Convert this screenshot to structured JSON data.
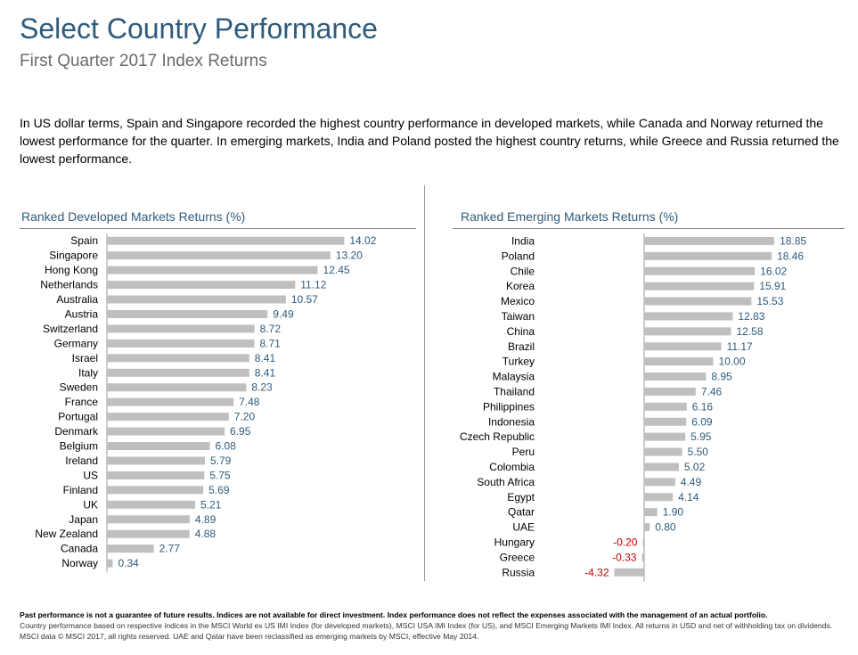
{
  "header": {
    "title": "Select Country Performance",
    "subtitle": "First Quarter 2017 Index Returns"
  },
  "intro": "In US dollar terms, Spain and Singapore recorded the highest country performance in developed markets, while Canada and Norway returned the lowest performance for the quarter. In emerging markets, India and Poland posted the highest country returns, while Greece and Russia returned the lowest performance.",
  "colors": {
    "bar": "#bfbfbf",
    "positive_label": "#2f5b7c",
    "negative_label": "#c00000",
    "title": "#2f5b7c",
    "axis": "#9a9a9a"
  },
  "chart_data": [
    {
      "type": "bar",
      "orientation": "horizontal",
      "title": "Ranked Developed Markets Returns (%)",
      "categories": [
        "Spain",
        "Singapore",
        "Hong Kong",
        "Netherlands",
        "Australia",
        "Austria",
        "Switzerland",
        "Germany",
        "Israel",
        "Italy",
        "Sweden",
        "France",
        "Portugal",
        "Denmark",
        "Belgium",
        "Ireland",
        "US",
        "Finland",
        "UK",
        "Japan",
        "New Zealand",
        "Canada",
        "Norway"
      ],
      "values": [
        14.02,
        13.2,
        12.45,
        11.12,
        10.57,
        9.49,
        8.72,
        8.71,
        8.41,
        8.41,
        8.23,
        7.48,
        7.2,
        6.95,
        6.08,
        5.79,
        5.75,
        5.69,
        5.21,
        4.89,
        4.88,
        2.77,
        0.34
      ],
      "labels": [
        "14.02",
        "13.20",
        "12.45",
        "11.12",
        "10.57",
        "9.49",
        "8.72",
        "8.71",
        "8.41",
        "8.41",
        "8.23",
        "7.48",
        "7.20",
        "6.95",
        "6.08",
        "5.79",
        "5.75",
        "5.69",
        "5.21",
        "4.89",
        "4.88",
        "2.77",
        "0.34"
      ],
      "xlim": [
        0,
        20
      ]
    },
    {
      "type": "bar",
      "orientation": "horizontal",
      "title": "Ranked Emerging Markets Returns (%)",
      "categories": [
        "India",
        "Poland",
        "Chile",
        "Korea",
        "Mexico",
        "Taiwan",
        "China",
        "Brazil",
        "Turkey",
        "Malaysia",
        "Thailand",
        "Philippines",
        "Indonesia",
        "Czech Republic",
        "Peru",
        "Colombia",
        "South Africa",
        "Egypt",
        "Qatar",
        "UAE",
        "Hungary",
        "Greece",
        "Russia"
      ],
      "values": [
        18.85,
        18.46,
        16.02,
        15.91,
        15.53,
        12.83,
        12.58,
        11.17,
        10.0,
        8.95,
        7.46,
        6.16,
        6.09,
        5.95,
        5.5,
        5.02,
        4.49,
        4.14,
        1.9,
        0.8,
        -0.2,
        -0.33,
        -4.32
      ],
      "labels": [
        "18.85",
        "18.46",
        "16.02",
        "15.91",
        "15.53",
        "12.83",
        "12.58",
        "11.17",
        "10.00",
        "8.95",
        "7.46",
        "6.16",
        "6.09",
        "5.95",
        "5.50",
        "5.02",
        "4.49",
        "4.14",
        "1.90",
        "0.80",
        "-0.20",
        "-0.33",
        "-4.32"
      ],
      "xlim": [
        -6,
        25
      ]
    }
  ],
  "footnote": {
    "bold": "Past performance is not a guarantee of future results. Indices are not available for direct investment. Index performance does not reflect the expenses associated with the management of an actual portfolio.",
    "text": "Country performance based on respective indices in the MSCI World ex US IMI Index (for developed markets), MSCI USA IMI Index (for US), and MSCI Emerging Markets IMI Index. All returns in USD and net of withholding tax on dividends. MSCI data © MSCI 2017, all rights reserved. UAE and Qatar have been reclassified as emerging markets by MSCI, effective May 2014."
  }
}
